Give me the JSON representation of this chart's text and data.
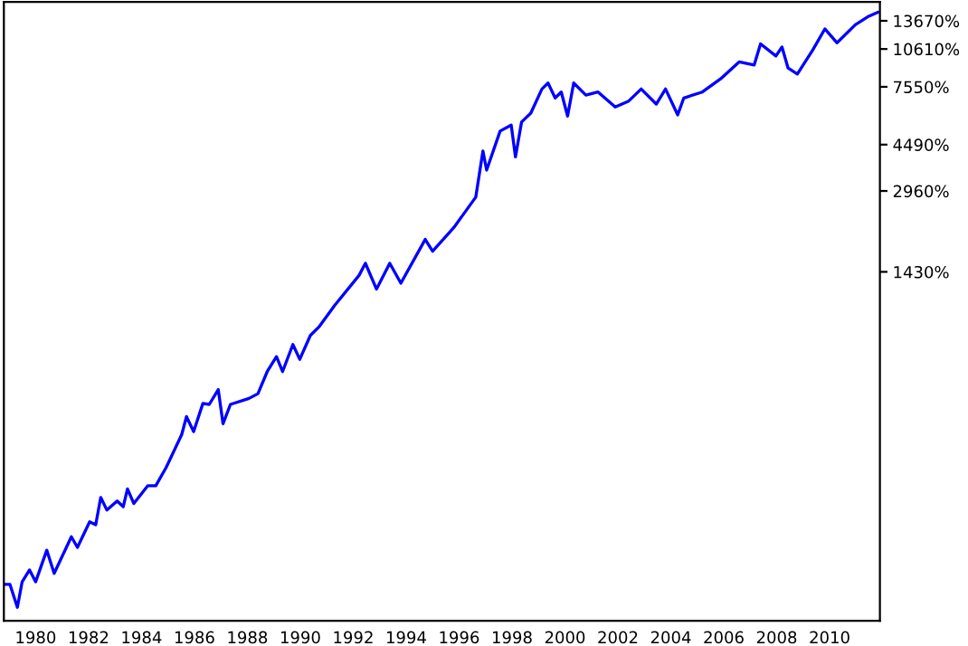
{
  "chart_data": {
    "type": "line",
    "log": "y",
    "grid": false,
    "marker": "none",
    "line_style": "solid",
    "xlim": [
      1978.8,
      2011.9
    ],
    "xticks": [
      1980,
      1982,
      1984,
      1986,
      1988,
      1990,
      1992,
      1994,
      1996,
      1998,
      2000,
      2002,
      2004,
      2006,
      2008,
      2010
    ],
    "ylim": [
      62,
      16200
    ],
    "yticks": [
      {
        "value": 1430,
        "label": "1430%"
      },
      {
        "value": 2960,
        "label": "2960%"
      },
      {
        "value": 4490,
        "label": "4490%"
      },
      {
        "value": 7550,
        "label": "7550%"
      },
      {
        "value": 10610,
        "label": "10610%"
      },
      {
        "value": 13670,
        "label": "13670%"
      }
    ],
    "series": [
      {
        "color": "#0000ff",
        "x": [
          1978.8,
          1979.03,
          1979.31,
          1979.49,
          1979.77,
          1980.0,
          1980.42,
          1980.7,
          1981.35,
          1981.58,
          1982.04,
          1982.27,
          1982.46,
          1982.69,
          1983.08,
          1983.31,
          1983.47,
          1983.71,
          1984.24,
          1984.54,
          1984.93,
          1985.52,
          1985.7,
          1985.97,
          1986.32,
          1986.56,
          1986.9,
          1987.08,
          1987.36,
          1988.06,
          1988.4,
          1988.75,
          1989.1,
          1989.33,
          1989.72,
          1989.98,
          1990.38,
          1990.72,
          1991.3,
          1992.22,
          1992.46,
          1992.88,
          1993.38,
          1993.8,
          1994.72,
          1995.0,
          1995.81,
          1996.63,
          1996.9,
          1997.04,
          1997.55,
          1997.97,
          1998.13,
          1998.36,
          1998.71,
          1999.13,
          1999.36,
          1999.63,
          1999.86,
          2000.1,
          2000.33,
          2000.79,
          2001.25,
          2001.9,
          2002.41,
          2002.88,
          2003.45,
          2003.8,
          2004.26,
          2004.49,
          2005.19,
          2005.88,
          2006.58,
          2007.15,
          2007.39,
          2007.97,
          2008.2,
          2008.43,
          2008.78,
          2009.36,
          2009.82,
          2010.28,
          2010.97,
          2011.44,
          2011.83
        ],
        "values": [
          86,
          86,
          70,
          88,
          98,
          88,
          117,
          95,
          132,
          120,
          151,
          147,
          188,
          168,
          182,
          173,
          203,
          178,
          209,
          209,
          246,
          331,
          389,
          340,
          438,
          434,
          496,
          365,
          434,
          458,
          478,
          583,
          667,
          583,
          744,
          651,
          807,
          875,
          1058,
          1385,
          1544,
          1224,
          1544,
          1291,
          1915,
          1721,
          2135,
          2800,
          4240,
          3570,
          5070,
          5355,
          4020,
          5500,
          5960,
          7405,
          7815,
          6830,
          7205,
          5805,
          7815,
          7005,
          7205,
          6300,
          6645,
          7405,
          6465,
          7405,
          5865,
          6830,
          7205,
          8110,
          9445,
          9190,
          11110,
          9965,
          10800,
          8940,
          8470,
          10510,
          12710,
          11220,
          13200,
          14170,
          14780
        ]
      }
    ]
  }
}
